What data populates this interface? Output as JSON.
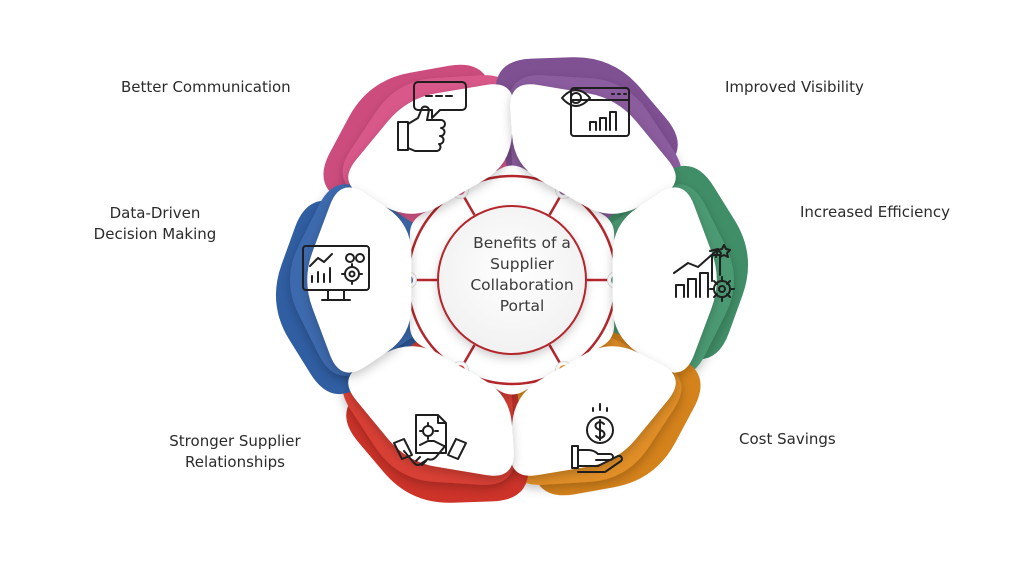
{
  "center": {
    "title": "Benefits of a Supplier Collaboration Portal"
  },
  "segments": [
    {
      "key": "communication",
      "label": "Better Communication",
      "color": "#d9588a",
      "icon": "thumbs-up-chat-icon"
    },
    {
      "key": "visibility",
      "label": "Improved Visibility",
      "color": "#8b5c9e",
      "icon": "eye-dashboard-icon"
    },
    {
      "key": "efficiency",
      "label": "Increased Efficiency",
      "color": "#4c9a73",
      "icon": "growth-chart-gear-icon"
    },
    {
      "key": "cost",
      "label": "Cost Savings",
      "color": "#e08e27",
      "icon": "hand-dollar-coin-icon"
    },
    {
      "key": "relationships",
      "label": "Stronger Supplier\nRelationships",
      "color": "#d93f35",
      "icon": "handshake-document-icon"
    },
    {
      "key": "data",
      "label": "Data-Driven\nDecision Making",
      "color": "#3c6aae",
      "icon": "monitor-analytics-icon"
    }
  ],
  "colors": {
    "hub_ring": "#b3262c",
    "center_text": "#3a3a3a",
    "label_text": "#2b2b2b"
  }
}
